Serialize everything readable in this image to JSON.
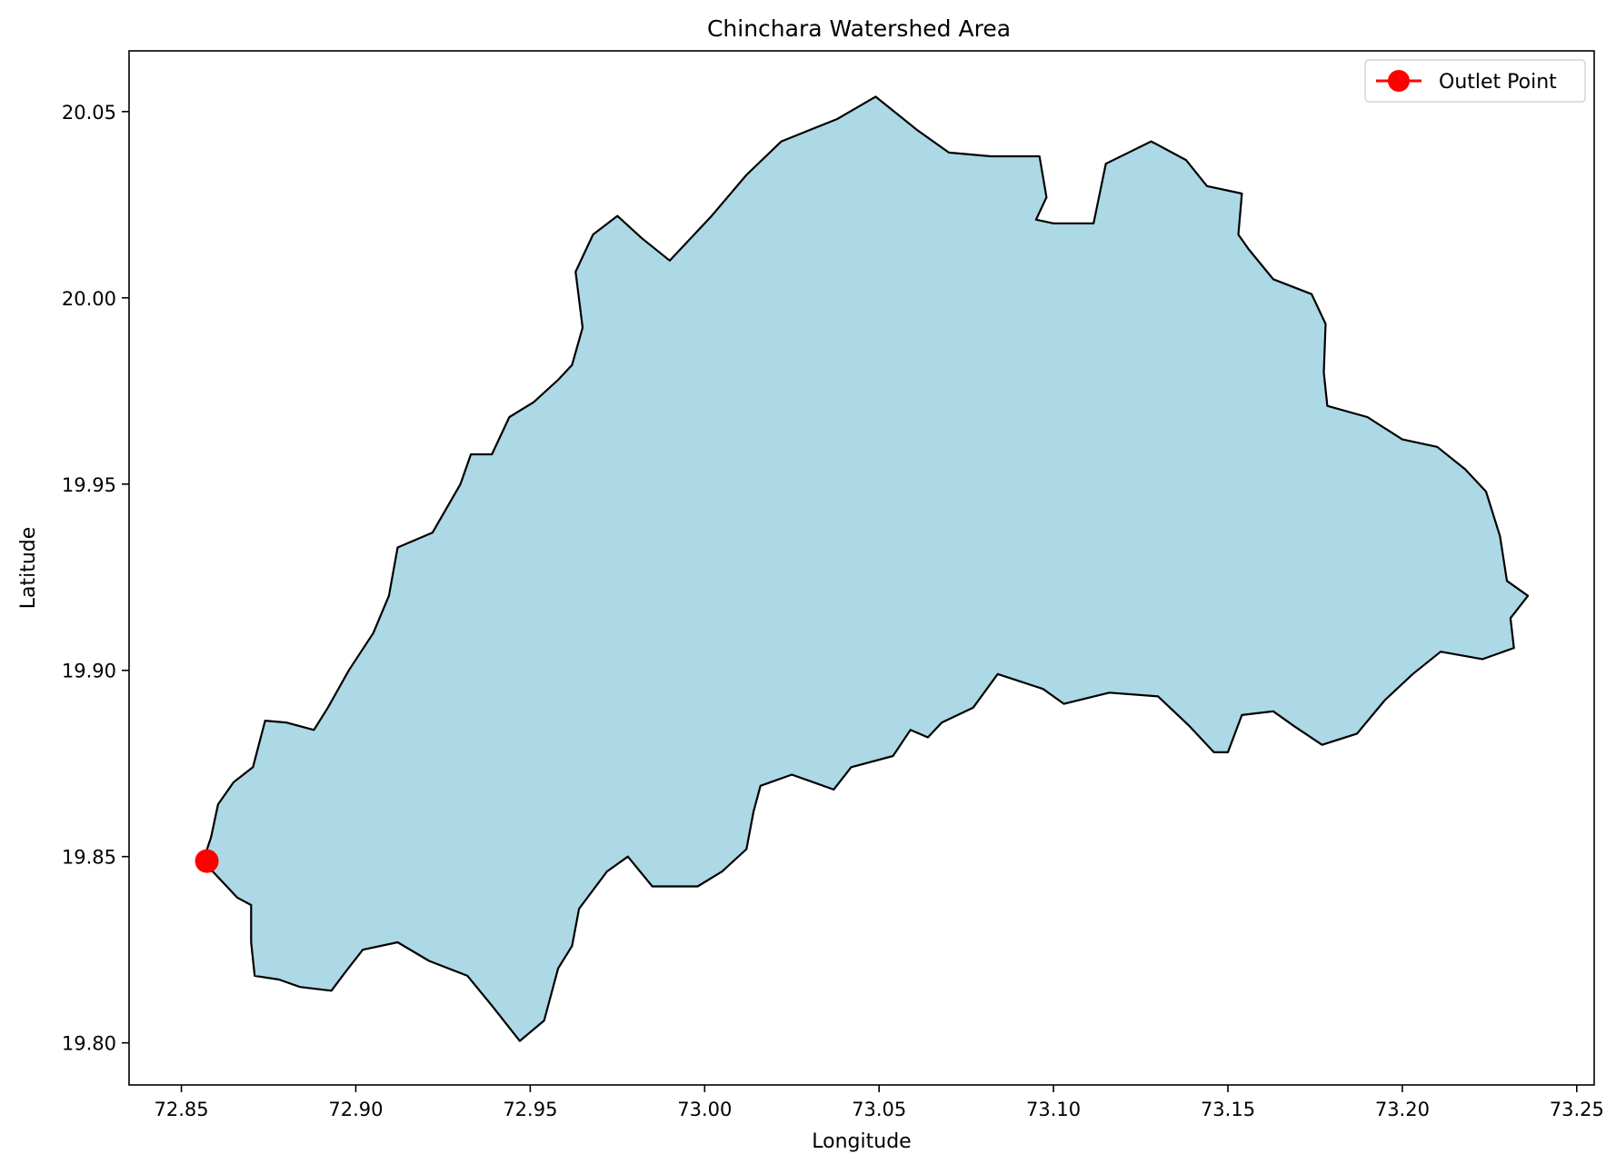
{
  "chart_data": {
    "type": "map",
    "title": "Chinchara Watershed Area",
    "xlabel": "Longitude",
    "ylabel": "Latitude",
    "xlim": [
      72.835,
      73.255
    ],
    "ylim": [
      19.7887,
      20.0663
    ],
    "xticks": [
      72.85,
      72.9,
      72.95,
      73.0,
      73.05,
      73.1,
      73.15,
      73.2,
      73.25
    ],
    "xtick_labels": [
      "72.85",
      "72.90",
      "72.95",
      "73.00",
      "73.05",
      "73.10",
      "73.15",
      "73.20",
      "73.25"
    ],
    "yticks": [
      19.8,
      19.85,
      19.9,
      19.95,
      20.0,
      20.05
    ],
    "ytick_labels": [
      "19.80",
      "19.85",
      "19.90",
      "19.95",
      "20.00",
      "20.05"
    ],
    "grid": false,
    "legend": {
      "position": "top-right",
      "entries": [
        "Outlet Point"
      ]
    },
    "watershed": {
      "fill": "#add8e6",
      "edge": "#000000",
      "boundary": [
        [
          72.8555,
          19.8468
        ],
        [
          72.8585,
          19.8552
        ],
        [
          72.8605,
          19.864
        ],
        [
          72.865,
          19.87
        ],
        [
          72.8705,
          19.874
        ],
        [
          72.874,
          19.8865
        ],
        [
          72.88,
          19.886
        ],
        [
          72.888,
          19.884
        ],
        [
          72.892,
          19.89
        ],
        [
          72.898,
          19.9
        ],
        [
          72.905,
          19.91
        ],
        [
          72.9095,
          19.92
        ],
        [
          72.912,
          19.933
        ],
        [
          72.922,
          19.937
        ],
        [
          72.93,
          19.95
        ],
        [
          72.933,
          19.958
        ],
        [
          72.939,
          19.958
        ],
        [
          72.944,
          19.968
        ],
        [
          72.951,
          19.972
        ],
        [
          72.958,
          19.978
        ],
        [
          72.962,
          19.982
        ],
        [
          72.965,
          19.992
        ],
        [
          72.963,
          20.007
        ],
        [
          72.968,
          20.017
        ],
        [
          72.975,
          20.022
        ],
        [
          72.982,
          20.016
        ],
        [
          72.99,
          20.01
        ],
        [
          73.002,
          20.022
        ],
        [
          73.012,
          20.033
        ],
        [
          73.022,
          20.042
        ],
        [
          73.038,
          20.048
        ],
        [
          73.049,
          20.054
        ],
        [
          73.061,
          20.045
        ],
        [
          73.07,
          20.039
        ],
        [
          73.082,
          20.038
        ],
        [
          73.096,
          20.038
        ],
        [
          73.098,
          20.027
        ],
        [
          73.095,
          20.021
        ],
        [
          73.1,
          20.02
        ],
        [
          73.1115,
          20.02
        ],
        [
          73.115,
          20.036
        ],
        [
          73.128,
          20.042
        ],
        [
          73.138,
          20.037
        ],
        [
          73.144,
          20.03
        ],
        [
          73.154,
          20.028
        ],
        [
          73.153,
          20.017
        ],
        [
          73.156,
          20.013
        ],
        [
          73.163,
          20.005
        ],
        [
          73.174,
          20.001
        ],
        [
          73.178,
          19.993
        ],
        [
          73.1775,
          19.98
        ],
        [
          73.1785,
          19.971
        ],
        [
          73.19,
          19.968
        ],
        [
          73.2,
          19.962
        ],
        [
          73.21,
          19.96
        ],
        [
          73.218,
          19.954
        ],
        [
          73.224,
          19.948
        ],
        [
          73.228,
          19.936
        ],
        [
          73.23,
          19.924
        ],
        [
          73.236,
          19.92
        ],
        [
          73.231,
          19.914
        ],
        [
          73.232,
          19.906
        ],
        [
          73.223,
          19.903
        ],
        [
          73.211,
          19.905
        ],
        [
          73.203,
          19.899
        ],
        [
          73.195,
          19.892
        ],
        [
          73.187,
          19.883
        ],
        [
          73.177,
          19.88
        ],
        [
          73.169,
          19.885
        ],
        [
          73.163,
          19.889
        ],
        [
          73.154,
          19.888
        ],
        [
          73.15,
          19.878
        ],
        [
          73.146,
          19.878
        ],
        [
          73.139,
          19.885
        ],
        [
          73.13,
          19.893
        ],
        [
          73.116,
          19.894
        ],
        [
          73.103,
          19.891
        ],
        [
          73.097,
          19.895
        ],
        [
          73.084,
          19.899
        ],
        [
          73.077,
          19.89
        ],
        [
          73.068,
          19.886
        ],
        [
          73.064,
          19.882
        ],
        [
          73.059,
          19.884
        ],
        [
          73.054,
          19.877
        ],
        [
          73.042,
          19.874
        ],
        [
          73.037,
          19.868
        ],
        [
          73.025,
          19.872
        ],
        [
          73.016,
          19.869
        ],
        [
          73.014,
          19.862
        ],
        [
          73.012,
          19.852
        ],
        [
          73.005,
          19.846
        ],
        [
          72.998,
          19.842
        ],
        [
          72.985,
          19.842
        ],
        [
          72.978,
          19.85
        ],
        [
          72.972,
          19.846
        ],
        [
          72.964,
          19.836
        ],
        [
          72.962,
          19.826
        ],
        [
          72.958,
          19.82
        ],
        [
          72.954,
          19.806
        ],
        [
          72.947,
          19.8005
        ],
        [
          72.939,
          19.81
        ],
        [
          72.932,
          19.818
        ],
        [
          72.921,
          19.822
        ],
        [
          72.912,
          19.827
        ],
        [
          72.902,
          19.825
        ],
        [
          72.897,
          19.819
        ],
        [
          72.893,
          19.814
        ],
        [
          72.884,
          19.815
        ],
        [
          72.878,
          19.817
        ],
        [
          72.871,
          19.818
        ],
        [
          72.87,
          19.827
        ],
        [
          72.87,
          19.837
        ],
        [
          72.866,
          19.839
        ],
        [
          72.859,
          19.846
        ],
        [
          72.8555,
          19.8468
        ]
      ]
    },
    "outlet_point": {
      "label": "Outlet Point",
      "lon": 72.8573,
      "lat": 19.8488,
      "color": "#ff0000"
    }
  }
}
